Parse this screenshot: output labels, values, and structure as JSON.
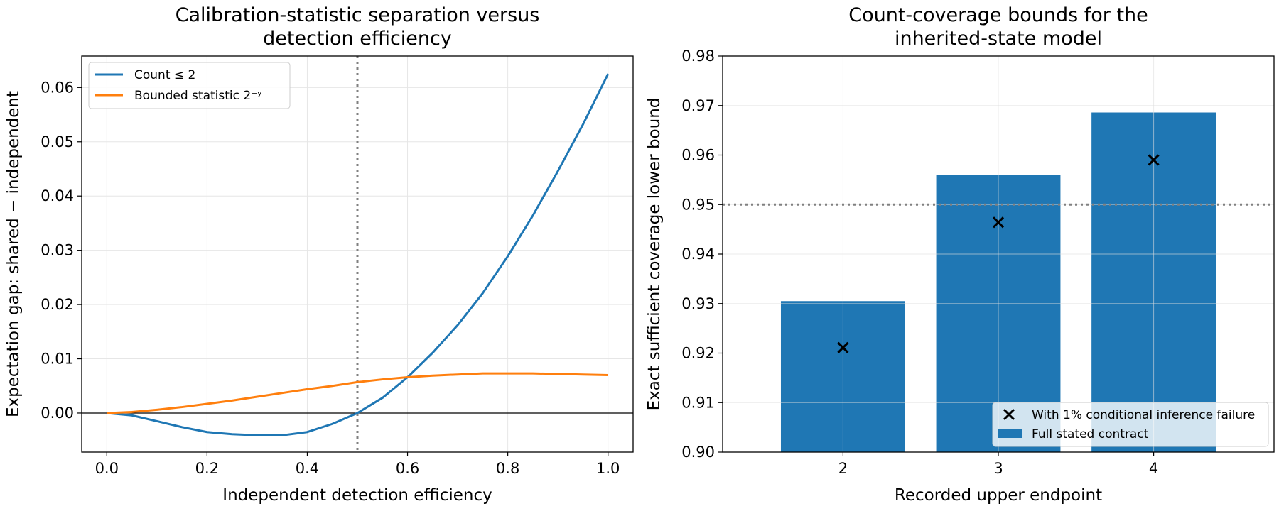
{
  "chart_data": [
    {
      "type": "line",
      "title_line1": "Calibration-statistic separation versus",
      "title_line2": "detection efficiency",
      "xlabel": "Independent detection efficiency",
      "ylabel": "Expectation gap: shared − independent",
      "xlim": [
        -0.05,
        1.05
      ],
      "ylim": [
        -0.0072,
        0.0658
      ],
      "xticks": [
        "0.0",
        "0.2",
        "0.4",
        "0.6",
        "0.8",
        "1.0"
      ],
      "yticks": [
        "0.00",
        "0.01",
        "0.02",
        "0.03",
        "0.04",
        "0.05",
        "0.06"
      ],
      "grid": true,
      "legend_position": "upper left",
      "reference_vline": 0.5,
      "zero_hline": 0,
      "series": [
        {
          "name": "Count ≤ 2",
          "color": "#1f77b4",
          "x": [
            0,
            0.05,
            0.1,
            0.15,
            0.2,
            0.25,
            0.3,
            0.333,
            0.35,
            0.4,
            0.45,
            0.5,
            0.55,
            0.6,
            0.65,
            0.7,
            0.75,
            0.8,
            0.85,
            0.9,
            0.95,
            1.0
          ],
          "y": [
            0,
            -0.00043,
            -0.0015,
            -0.0026,
            -0.0035,
            -0.0039,
            -0.0041,
            -0.0041,
            -0.0041,
            -0.0035,
            -0.002,
            0,
            0.0028,
            0.0066,
            0.0111,
            0.0162,
            0.0221,
            0.0289,
            0.0364,
            0.0446,
            0.0532,
            0.0625
          ]
        },
        {
          "name": "Bounded statistic 2⁻ʸ",
          "color": "#ff7f0e",
          "x": [
            0,
            0.05,
            0.1,
            0.15,
            0.2,
            0.25,
            0.3,
            0.35,
            0.4,
            0.45,
            0.5,
            0.55,
            0.6,
            0.65,
            0.7,
            0.75,
            0.8,
            0.85,
            0.9,
            0.95,
            1.0
          ],
          "y": [
            0,
            0.0002,
            0.0006,
            0.0011,
            0.0017,
            0.0023,
            0.003,
            0.0037,
            0.0044,
            0.005,
            0.0057,
            0.0062,
            0.0066,
            0.0069,
            0.0071,
            0.0073,
            0.0073,
            0.0073,
            0.0072,
            0.0071,
            0.007
          ]
        }
      ]
    },
    {
      "type": "bar",
      "title_line1": "Count-coverage bounds for the",
      "title_line2": "inherited-state model",
      "xlabel": "Recorded upper endpoint",
      "ylabel": "Exact sufficient coverage lower bound",
      "categories": [
        "2",
        "3",
        "4"
      ],
      "ylim": [
        0.9,
        0.98
      ],
      "yticks": [
        "0.90",
        "0.91",
        "0.92",
        "0.93",
        "0.94",
        "0.95",
        "0.96",
        "0.97",
        "0.98"
      ],
      "grid": true,
      "legend_position": "lower right",
      "reference_hline": 0.95,
      "series": [
        {
          "name": "Full stated contract",
          "kind": "bar",
          "color": "#1f77b4",
          "values": [
            0.9305,
            0.956,
            0.9686
          ]
        },
        {
          "name": "With 1% conditional inference failure",
          "kind": "marker",
          "color": "#000000",
          "values": [
            0.9211,
            0.9464,
            0.959
          ]
        }
      ]
    }
  ]
}
